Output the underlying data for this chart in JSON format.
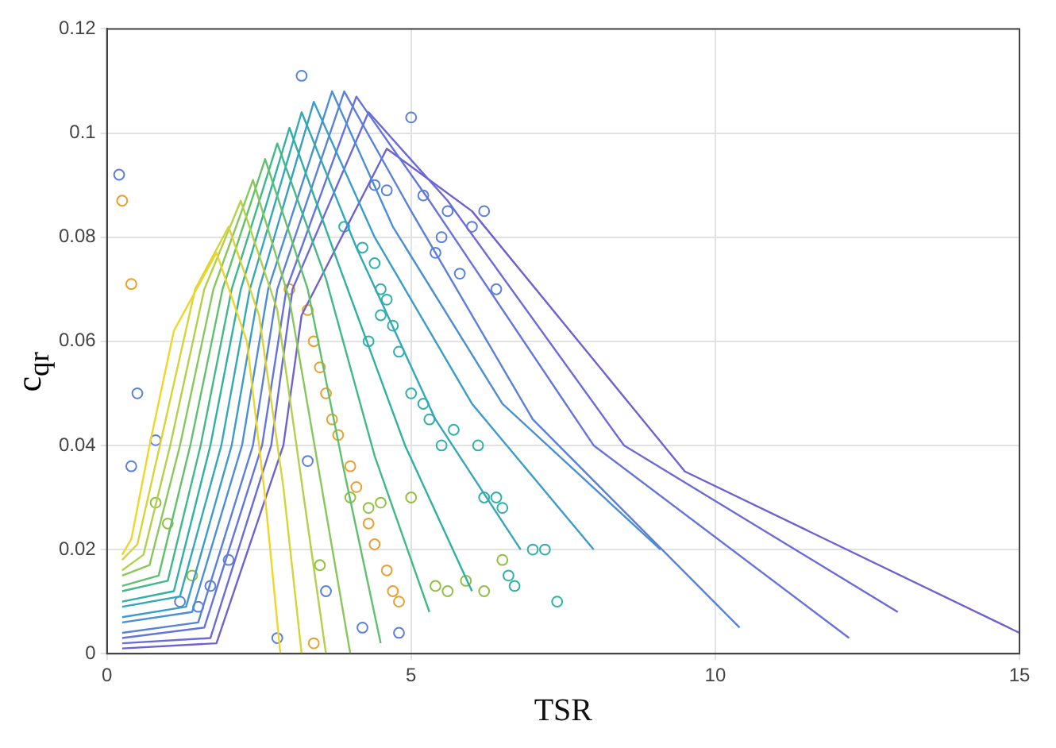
{
  "chart_data": {
    "type": "line",
    "xlabel": "TSR",
    "ylabel": "c$_{qr}$",
    "xlim": [
      0,
      15
    ],
    "xticks": [
      0,
      5,
      10,
      15
    ],
    "ylim": [
      0,
      0.12
    ],
    "yticks": [
      0,
      0.02,
      0.04,
      0.06,
      0.08,
      0.1,
      0.12
    ],
    "grid": true,
    "legend": false,
    "line_style": "solid",
    "series": [
      {
        "color": "#f0d628",
        "x": [
          0.25,
          0.4,
          0.7,
          1.1,
          1.8,
          2.3,
          2.6,
          2.85
        ],
        "values": [
          0.019,
          0.022,
          0.04,
          0.062,
          0.077,
          0.06,
          0.03,
          0.0
        ]
      },
      {
        "color": "#d6d436",
        "x": [
          0.25,
          0.5,
          0.87,
          1.45,
          2.0,
          2.5,
          2.9,
          3.2
        ],
        "values": [
          0.018,
          0.021,
          0.04,
          0.07,
          0.082,
          0.065,
          0.032,
          0.0
        ]
      },
      {
        "color": "#b2d04a",
        "x": [
          0.25,
          0.6,
          1.04,
          1.6,
          2.2,
          2.8,
          3.2,
          3.6
        ],
        "values": [
          0.016,
          0.019,
          0.04,
          0.07,
          0.087,
          0.066,
          0.033,
          0.0
        ]
      },
      {
        "color": "#88c85a",
        "x": [
          0.25,
          0.7,
          1.2,
          1.75,
          2.4,
          3.0,
          3.5,
          4.0
        ],
        "values": [
          0.015,
          0.017,
          0.04,
          0.07,
          0.091,
          0.068,
          0.034,
          0.0
        ]
      },
      {
        "color": "#60c06c",
        "x": [
          0.25,
          0.85,
          1.37,
          1.9,
          2.6,
          3.3,
          3.9,
          4.5
        ],
        "values": [
          0.013,
          0.015,
          0.04,
          0.07,
          0.095,
          0.07,
          0.035,
          0.002
        ]
      },
      {
        "color": "#40b888",
        "x": [
          0.25,
          1.0,
          1.54,
          2.05,
          2.8,
          3.6,
          4.4,
          5.3
        ],
        "values": [
          0.012,
          0.014,
          0.04,
          0.07,
          0.098,
          0.072,
          0.038,
          0.008
        ]
      },
      {
        "color": "#30b0a0",
        "x": [
          0.25,
          1.1,
          1.7,
          2.2,
          3.0,
          3.8,
          4.9,
          6.0
        ],
        "values": [
          0.01,
          0.012,
          0.04,
          0.07,
          0.101,
          0.075,
          0.04,
          0.012
        ]
      },
      {
        "color": "#32a8b8",
        "x": [
          0.25,
          1.2,
          1.88,
          2.35,
          3.2,
          4.1,
          5.4,
          6.8
        ],
        "values": [
          0.009,
          0.011,
          0.04,
          0.07,
          0.104,
          0.078,
          0.045,
          0.02
        ]
      },
      {
        "color": "#3a9cc8",
        "x": [
          0.25,
          1.3,
          2.05,
          2.5,
          3.4,
          4.4,
          6.0,
          8.0
        ],
        "values": [
          0.007,
          0.009,
          0.04,
          0.07,
          0.106,
          0.08,
          0.048,
          0.02
        ]
      },
      {
        "color": "#4a8ed6",
        "x": [
          0.25,
          1.4,
          2.22,
          2.65,
          3.7,
          4.7,
          6.5,
          9.1
        ],
        "values": [
          0.006,
          0.008,
          0.04,
          0.07,
          0.108,
          0.082,
          0.048,
          0.02
        ]
      },
      {
        "color": "#5a80dc",
        "x": [
          0.25,
          1.5,
          2.4,
          2.8,
          3.9,
          5.0,
          7.0,
          10.4
        ],
        "values": [
          0.004,
          0.006,
          0.04,
          0.07,
          0.108,
          0.085,
          0.045,
          0.005
        ]
      },
      {
        "color": "#6474dc",
        "x": [
          0.25,
          1.6,
          2.55,
          2.95,
          4.1,
          5.3,
          8.0,
          12.2
        ],
        "values": [
          0.003,
          0.005,
          0.04,
          0.07,
          0.107,
          0.087,
          0.04,
          0.003
        ]
      },
      {
        "color": "#6a6ad8",
        "x": [
          0.25,
          1.7,
          2.7,
          3.05,
          4.3,
          5.6,
          8.5,
          13.0
        ],
        "values": [
          0.002,
          0.003,
          0.04,
          0.07,
          0.104,
          0.087,
          0.04,
          0.008
        ]
      },
      {
        "color": "#6e62cf",
        "x": [
          0.25,
          1.8,
          2.9,
          3.2,
          4.6,
          6.0,
          9.5,
          15.0
        ],
        "values": [
          0.001,
          0.002,
          0.04,
          0.065,
          0.097,
          0.085,
          0.035,
          0.004
        ]
      },
      {
        "type": "scatter",
        "marker": "circle",
        "color": "#5a80dc",
        "x": [
          0.2,
          3.2,
          5.0,
          4.4,
          4.6,
          5.2,
          5.6,
          6.0,
          6.2,
          5.4,
          5.8,
          6.4,
          0.4,
          0.8,
          0.5,
          1.7,
          2.0,
          1.5,
          1.2,
          2.8,
          3.6,
          4.8,
          3.3,
          4.2,
          5.5
        ],
        "values": [
          0.092,
          0.111,
          0.103,
          0.09,
          0.089,
          0.088,
          0.085,
          0.082,
          0.085,
          0.077,
          0.073,
          0.07,
          0.036,
          0.041,
          0.05,
          0.013,
          0.018,
          0.009,
          0.01,
          0.003,
          0.012,
          0.004,
          0.037,
          0.005,
          0.08
        ]
      },
      {
        "type": "scatter",
        "marker": "circle",
        "color": "#e8a030",
        "x": [
          0.25,
          0.4,
          3.0,
          3.3,
          3.4,
          3.5,
          3.6,
          3.7,
          3.8,
          4.0,
          4.1,
          4.3,
          4.4,
          4.6,
          4.7,
          4.8,
          3.4
        ],
        "values": [
          0.087,
          0.071,
          0.07,
          0.066,
          0.06,
          0.055,
          0.05,
          0.045,
          0.042,
          0.036,
          0.032,
          0.025,
          0.021,
          0.016,
          0.012,
          0.01,
          0.002
        ]
      },
      {
        "type": "scatter",
        "marker": "circle",
        "color": "#30b0a8",
        "x": [
          4.4,
          4.5,
          4.6,
          4.5,
          4.7,
          4.3,
          4.8,
          5.0,
          5.2,
          5.3,
          5.5,
          5.7,
          6.1,
          6.4,
          6.5,
          6.2,
          6.6,
          6.7,
          7.0,
          7.2,
          7.4,
          4.2,
          3.9
        ],
        "values": [
          0.075,
          0.07,
          0.068,
          0.065,
          0.063,
          0.06,
          0.058,
          0.05,
          0.048,
          0.045,
          0.04,
          0.043,
          0.04,
          0.03,
          0.028,
          0.03,
          0.015,
          0.013,
          0.02,
          0.02,
          0.01,
          0.078,
          0.082
        ]
      },
      {
        "type": "scatter",
        "marker": "circle",
        "color": "#90c040",
        "x": [
          4.0,
          4.3,
          4.5,
          5.0,
          5.4,
          5.6,
          5.9,
          6.2,
          3.5,
          6.5,
          1.0,
          0.8,
          1.4
        ],
        "values": [
          0.03,
          0.028,
          0.029,
          0.03,
          0.013,
          0.012,
          0.014,
          0.012,
          0.017,
          0.018,
          0.025,
          0.029,
          0.015
        ]
      }
    ]
  }
}
